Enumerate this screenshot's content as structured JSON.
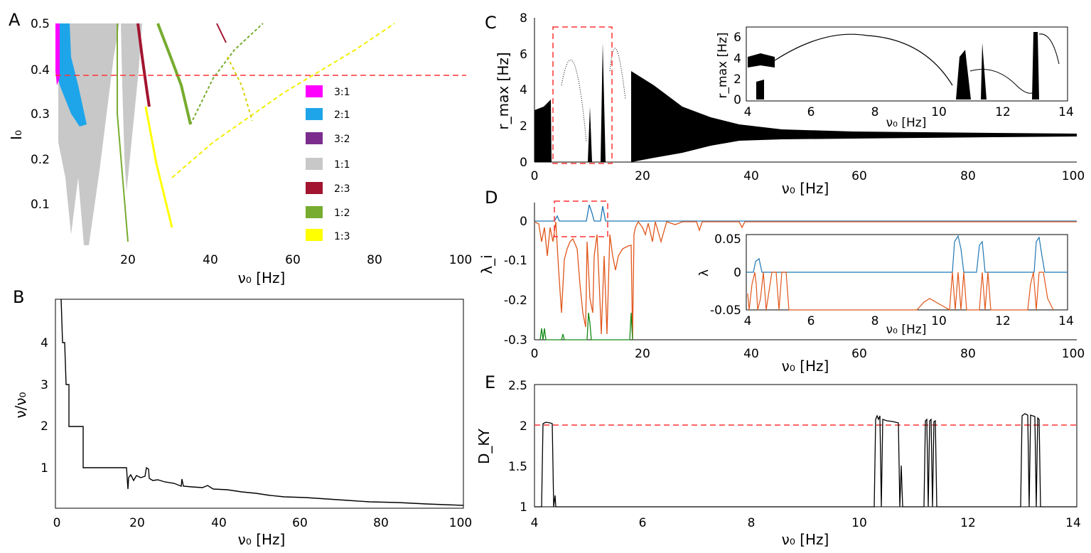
{
  "panels": {
    "A": {
      "letter": "A",
      "xlabel": "ν₀ [Hz]",
      "ylabel": "I₀",
      "xticks": [
        "20",
        "40",
        "60",
        "80",
        "100"
      ],
      "yticks": [
        "0.1",
        "0.2",
        "0.3",
        "0.4",
        "0.5"
      ],
      "legend": [
        {
          "label": "3:1",
          "color": "#ff00ff"
        },
        {
          "label": "2:1",
          "color": "#1ea5e9"
        },
        {
          "label": "3:2",
          "color": "#7b2d8e"
        },
        {
          "label": "1:1",
          "color": "#c8c8c8"
        },
        {
          "label": "2:3",
          "color": "#a2142f"
        },
        {
          "label": "1:2",
          "color": "#77ac30"
        },
        {
          "label": "1:3",
          "color": "#ffff00"
        }
      ]
    },
    "B": {
      "letter": "B",
      "xlabel": "ν₀ [Hz]",
      "ylabel": "ν/ν₀",
      "xticks": [
        "0",
        "20",
        "40",
        "60",
        "80",
        "100"
      ],
      "yticks": [
        "1",
        "2",
        "3",
        "4"
      ]
    },
    "C": {
      "letter": "C",
      "xlabel": "ν₀ [Hz]",
      "ylabel": "r_max [Hz]",
      "xticks": [
        "0",
        "20",
        "40",
        "60",
        "80",
        "100"
      ],
      "yticks": [
        "0",
        "2",
        "4",
        "6",
        "8"
      ],
      "inset": {
        "xlabel": "ν₀ [Hz]",
        "ylabel": "r_max [Hz]",
        "xticks": [
          "4",
          "6",
          "8",
          "10",
          "12",
          "14"
        ],
        "yticks": [
          "0",
          "2",
          "4",
          "6"
        ]
      }
    },
    "D": {
      "letter": "D",
      "xlabel": "ν₀ [Hz]",
      "ylabel": "λ_i",
      "xticks": [
        "0",
        "20",
        "40",
        "60",
        "80",
        "100"
      ],
      "yticks": [
        "0",
        "-0.1",
        "-0.2",
        "-0.3"
      ],
      "inset": {
        "xlabel": "ν₀ [Hz]",
        "ylabel": "λ",
        "xticks": [
          "4",
          "6",
          "8",
          "10",
          "12",
          "14"
        ],
        "yticks": [
          "0.05",
          "0",
          "-0.05"
        ]
      }
    },
    "E": {
      "letter": "E",
      "xlabel": "ν₀ [Hz]",
      "ylabel": "D_KY",
      "xticks": [
        "4",
        "6",
        "8",
        "10",
        "12",
        "14"
      ],
      "yticks": [
        "1",
        "1.5",
        "2",
        "2.5"
      ]
    }
  },
  "colors": {
    "reference_line": "#ff3333",
    "lyap1": "#1f77b4",
    "lyap2": "#e0561a",
    "lyap3": "#138a13"
  },
  "chart_data": [
    {
      "panel": "A",
      "type": "heatmap",
      "xlabel": "ν₀ [Hz]",
      "ylabel": "I₀",
      "xlim": [
        0,
        100
      ],
      "ylim": [
        0,
        0.5
      ],
      "reference_line_y": 0.385,
      "series": [
        {
          "name": "3:1",
          "region": [
            [
              1.8,
              0.36
            ],
            [
              2.5,
              0.5
            ]
          ]
        },
        {
          "name": "2:1",
          "region": [
            [
              1.8,
              0.26
            ],
            [
              7.5,
              0.5
            ]
          ]
        },
        {
          "name": "1:1",
          "region": [
            [
              3,
              0.05
            ],
            [
              20,
              0.5
            ]
          ]
        },
        {
          "name": "2:3",
          "path": [
            [
              20,
              0.5
            ],
            [
              25,
              0.3
            ]
          ]
        },
        {
          "name": "1:2",
          "path": [
            [
              18,
              0.5
            ],
            [
              28,
              0.27
            ],
            [
              32,
              0.2
            ],
            [
              37,
              0.4
            ],
            [
              48,
              0.5
            ]
          ]
        },
        {
          "name": "1:3",
          "path": [
            [
              23,
              0.3
            ],
            [
              30,
              0.05
            ],
            [
              45,
              0.28
            ],
            [
              84,
              0.5
            ]
          ]
        }
      ]
    },
    {
      "panel": "B",
      "type": "line",
      "xlabel": "ν₀ [Hz]",
      "ylabel": "ν/ν₀",
      "xlim": [
        0,
        100
      ],
      "ylim": [
        0,
        5
      ],
      "x": [
        1.5,
        2.0,
        2.4,
        3.0,
        3.5,
        6.9,
        7.0,
        17.5,
        18,
        20,
        22,
        23,
        25,
        28,
        30,
        32,
        36,
        40,
        50,
        60,
        70,
        80,
        90,
        100
      ],
      "y": [
        4.9,
        4.0,
        4.0,
        3.0,
        2.0,
        2.0,
        1.0,
        1.0,
        0.65,
        0.75,
        0.78,
        0.72,
        0.7,
        0.65,
        0.62,
        0.6,
        0.57,
        0.55,
        0.45,
        0.37,
        0.3,
        0.25,
        0.2,
        0.17
      ]
    },
    {
      "panel": "C",
      "type": "scatter",
      "xlabel": "ν₀ [Hz]",
      "ylabel": "r_max [Hz]",
      "xlim": [
        0,
        100
      ],
      "ylim": [
        0,
        8
      ],
      "series": [
        {
          "x": [
            0,
            3,
            5,
            8,
            11,
            13,
            15,
            17,
            20,
            25,
            30,
            40,
            50,
            60,
            70,
            80,
            90,
            100
          ],
          "y_min": [
            0.2,
            0.2,
            0.0,
            0.0,
            0.0,
            0.0,
            0.0,
            0.0,
            0.0,
            0.5,
            1.0,
            1.2,
            1.3,
            1.4,
            1.4,
            1.4,
            1.45,
            1.45
          ],
          "y_max": [
            2.8,
            3.5,
            4.2,
            6.3,
            5.0,
            7.0,
            6.2,
            5.0,
            4.5,
            3.0,
            2.3,
            1.9,
            1.8,
            1.7,
            1.6,
            1.6,
            1.55,
            1.5
          ]
        }
      ],
      "inset": {
        "xlim": [
          4,
          14
        ],
        "ylim": [
          0,
          7
        ],
        "x": [
          4,
          5,
          6,
          7,
          8,
          9,
          10,
          11,
          12,
          13,
          14
        ],
        "y": [
          4.2,
          4.8,
          5.5,
          6.0,
          6.3,
          5.5,
          1.5,
          4.5,
          5.0,
          7.0,
          4.0
        ]
      }
    },
    {
      "panel": "D",
      "type": "line",
      "xlabel": "ν₀ [Hz]",
      "ylabel": "λ_i",
      "xlim": [
        0,
        100
      ],
      "ylim": [
        -0.3,
        0.05
      ],
      "series": [
        {
          "x": [
            0,
            4,
            10,
            13,
            100
          ],
          "y": [
            0.0,
            0.012,
            0.045,
            0.04,
            0.0
          ]
        },
        {
          "x": [
            0,
            4,
            8,
            12,
            15,
            18,
            20,
            25,
            30,
            40,
            100
          ],
          "y": [
            -0.02,
            -0.2,
            -0.08,
            -0.25,
            -0.15,
            -0.05,
            -0.03,
            -0.01,
            -0.02,
            -0.005,
            0.0
          ]
        },
        {
          "x": [
            1,
            5,
            10,
            18
          ],
          "y": [
            -0.27,
            -0.3,
            -0.23,
            -0.3
          ]
        }
      ],
      "inset": {
        "xlim": [
          4,
          14
        ],
        "ylim": [
          -0.05,
          0.05
        ]
      }
    },
    {
      "panel": "E",
      "type": "line",
      "xlabel": "ν₀ [Hz]",
      "ylabel": "D_KY",
      "xlim": [
        4,
        14
      ],
      "ylim": [
        1,
        2.5
      ],
      "reference_line_y": 2.0,
      "x": [
        4.0,
        4.3,
        4.31,
        4.45,
        4.46,
        10.34,
        10.36,
        10.75,
        10.77,
        11.25,
        11.27,
        11.45,
        11.47,
        13.03,
        13.05,
        13.3,
        13.32,
        14.0
      ],
      "y": [
        1.0,
        1.0,
        2.03,
        2.03,
        1.0,
        1.0,
        2.1,
        2.05,
        1.0,
        1.0,
        2.08,
        2.06,
        1.0,
        1.0,
        2.12,
        2.08,
        1.0,
        1.0
      ]
    }
  ]
}
